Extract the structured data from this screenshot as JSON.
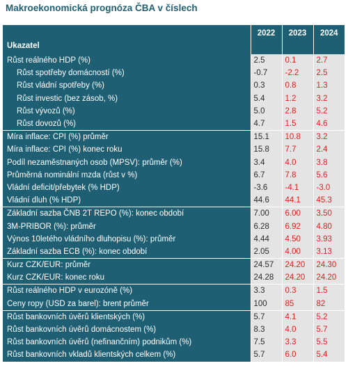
{
  "title": "Makroekonomická prognóza ČBA v číslech",
  "header": {
    "indicator": "Ukazatel",
    "years": [
      "2022",
      "2023",
      "2024"
    ]
  },
  "colors": {
    "header_bg": "#1f5f73",
    "value_bg": "#e4e4e4",
    "forecast_text": "#e0201d",
    "actual_text": "#2a2a2a"
  },
  "rows": [
    {
      "label": "Růst reálného HDP (%)",
      "values": [
        "2.5",
        "0.1",
        "2.7"
      ],
      "indent": false,
      "group_start": true
    },
    {
      "label": "Růst spotřeby domácností (%)",
      "values": [
        "-0.7",
        "-2.2",
        "2.5"
      ],
      "indent": true,
      "group_start": false
    },
    {
      "label": "Růst vládní spotřeby (%)",
      "values": [
        "0.3",
        "0.8",
        "1.3"
      ],
      "indent": true,
      "group_start": false
    },
    {
      "label": "Růst investic (bez zásob, %)",
      "values": [
        "5.4",
        "1.2",
        "3.2"
      ],
      "indent": true,
      "group_start": false
    },
    {
      "label": "Růst vývozů (%)",
      "values": [
        "5.0",
        "2.8",
        "5.2"
      ],
      "indent": true,
      "group_start": false
    },
    {
      "label": "Růst dovozů (%)",
      "values": [
        "4.7",
        "1.5",
        "4.6"
      ],
      "indent": true,
      "group_start": false
    },
    {
      "label": "Míra inflace: CPI (%) průměr",
      "values": [
        "15.1",
        "10.8",
        "3.2"
      ],
      "indent": false,
      "group_start": true
    },
    {
      "label": "Míra inflace: CPI (%) konec roku",
      "values": [
        "15.8",
        "7.7",
        "2.4"
      ],
      "indent": false,
      "group_start": false
    },
    {
      "label": "Podíl nezaměstnaných osob (MPSV): průměr (%)",
      "values": [
        "3.4",
        "4.0",
        "3.8"
      ],
      "indent": false,
      "group_start": false
    },
    {
      "label": "Průměrná nominální mzda (růst v %)",
      "values": [
        "6.7",
        "7.8",
        "5.6"
      ],
      "indent": false,
      "group_start": false
    },
    {
      "label": "Vládní deficit/přebytek (% HDP)",
      "values": [
        "-3.6",
        "-4.1",
        "-3.0"
      ],
      "indent": false,
      "group_start": false
    },
    {
      "label": "Vládní dluh (% HDP)",
      "values": [
        "44.6",
        "44.1",
        "45.3"
      ],
      "indent": false,
      "group_start": false
    },
    {
      "label": "Základní sazba ČNB 2T REPO (%): konec období",
      "values": [
        "7.00",
        "6.00",
        "3.50"
      ],
      "indent": false,
      "group_start": true
    },
    {
      "label": "3M-PRIBOR (%): průměr",
      "values": [
        "6.28",
        "6.92",
        "4.80"
      ],
      "indent": false,
      "group_start": false
    },
    {
      "label": "Výnos 10letého vládního dluhopisu (%): průměr",
      "values": [
        "4.44",
        "4.50",
        "3.93"
      ],
      "indent": false,
      "group_start": false
    },
    {
      "label": "Základní sazba ECB (%): konec období",
      "values": [
        "2.05",
        "4.00",
        "3.13"
      ],
      "indent": false,
      "group_start": false
    },
    {
      "label": "Kurz CZK/EUR: průměr",
      "values": [
        "24.57",
        "24.20",
        "24.30"
      ],
      "indent": false,
      "group_start": true
    },
    {
      "label": "Kurz CZK/EUR: konec roku",
      "values": [
        "24.28",
        "24.20",
        "24.20"
      ],
      "indent": false,
      "group_start": false
    },
    {
      "label": "Růst reálného HDP v eurozóně (%)",
      "values": [
        "3.3",
        "0.3",
        "1.5"
      ],
      "indent": false,
      "group_start": true
    },
    {
      "label": "Ceny ropy (USD za barel): brent průměr",
      "values": [
        "100",
        "85",
        "82"
      ],
      "indent": false,
      "group_start": false
    },
    {
      "label": "Růst bankovních úvěrů klientských (%)",
      "values": [
        "5.7",
        "4.1",
        "5.2"
      ],
      "indent": false,
      "group_start": true
    },
    {
      "label": "Růst bankovních úvěrů domácnostem (%)",
      "values": [
        "8.3",
        "4.0",
        "5.7"
      ],
      "indent": false,
      "group_start": false
    },
    {
      "label": "Růst bankovních úvěrů (nefinančním) podnikům (%)",
      "values": [
        "7.5",
        "3.3",
        "5.5"
      ],
      "indent": false,
      "group_start": false
    },
    {
      "label": "Růst bankovních vkladů klientských celkem (%)",
      "values": [
        "5.7",
        "6.0",
        "5.4"
      ],
      "indent": false,
      "group_start": false
    }
  ]
}
